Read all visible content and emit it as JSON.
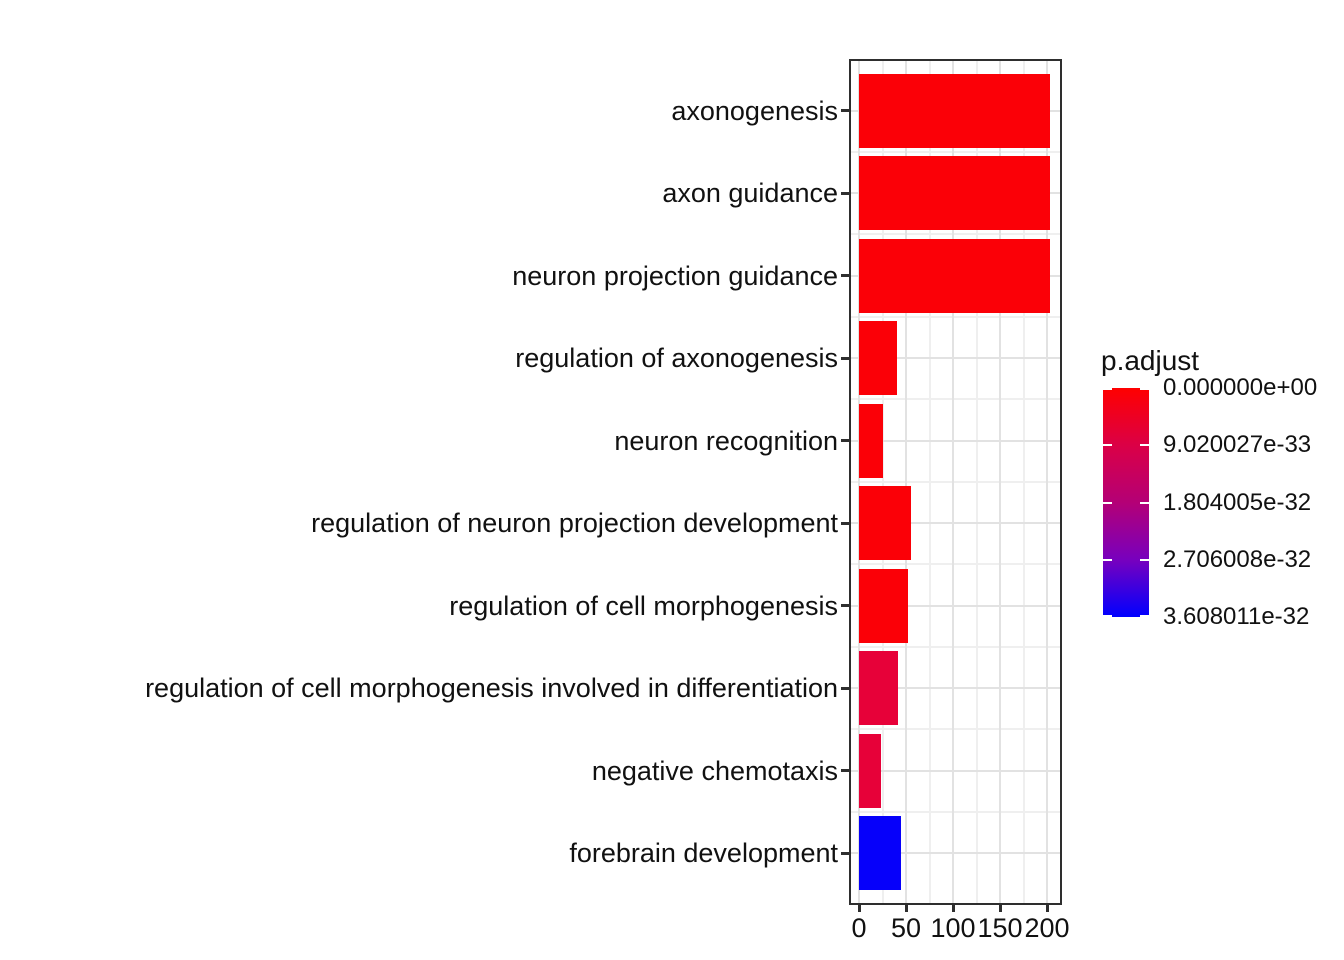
{
  "chart_data": {
    "type": "bar",
    "orientation": "horizontal",
    "title": "",
    "xlabel": "",
    "ylabel": "",
    "categories": [
      "axonogenesis",
      "axon guidance",
      "neuron projection guidance",
      "regulation of axonogenesis",
      "neuron recognition",
      "regulation of neuron projection development",
      "regulation of cell morphogenesis",
      "regulation of cell morphogenesis involved in differentiation",
      "negative chemotaxis",
      "forebrain development"
    ],
    "values": [
      203,
      203,
      203,
      40,
      26,
      55,
      52,
      41,
      23,
      45
    ],
    "bar_colors": [
      "#fb0007",
      "#fb0007",
      "#fb0007",
      "#fb0007",
      "#fb0007",
      "#fb0007",
      "#fb0007",
      "#e70139",
      "#e70139",
      "#0600fa"
    ],
    "xlim": [
      0,
      213
    ],
    "x_ticks": [
      "0",
      "50",
      "100",
      "150",
      "200"
    ],
    "x_tick_values": [
      0,
      50,
      100,
      150,
      200
    ],
    "x_minor_tick_values": [
      25,
      75,
      125,
      175
    ],
    "grid": "major-and-minor",
    "legend": {
      "position": "right",
      "type": "colorbar",
      "title": "p.adjust",
      "gradient_stops": [
        "#ff0000",
        "#db0046",
        "#b40076",
        "#7800be",
        "#0000ff"
      ],
      "tick_labels": [
        "0.000000e+00",
        "9.020027e-33",
        "1.804005e-32",
        "2.706008e-32",
        "3.608011e-32"
      ]
    }
  }
}
